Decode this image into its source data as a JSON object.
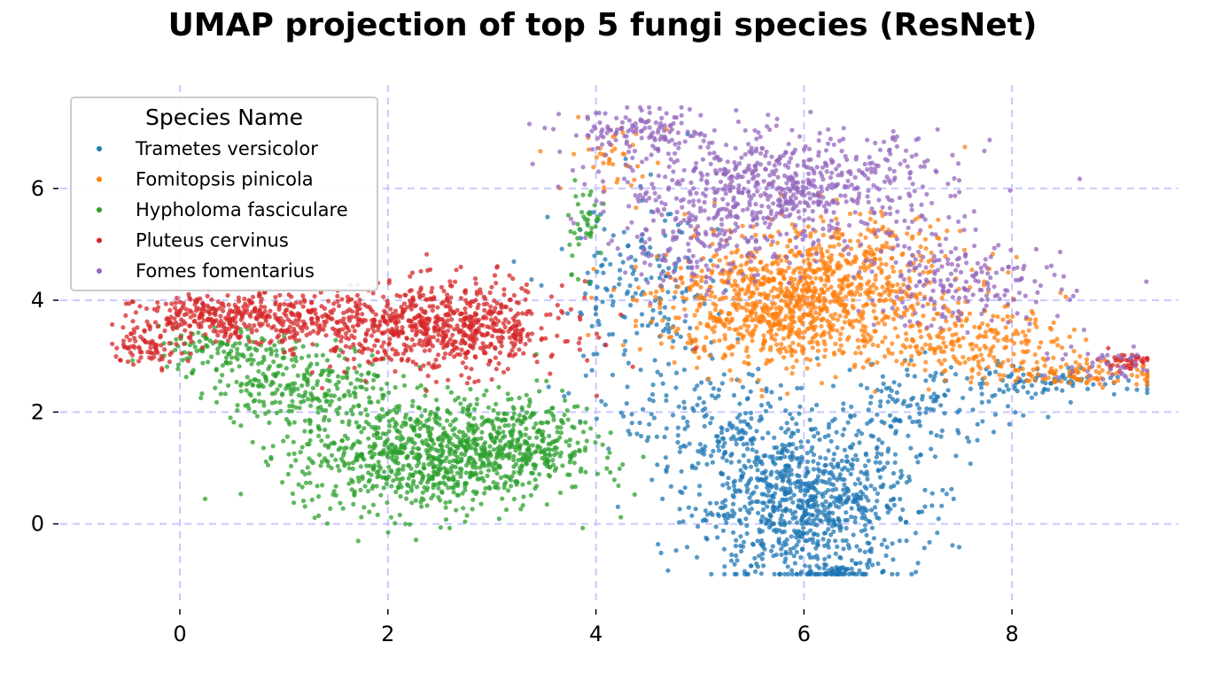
{
  "chart_data": {
    "type": "scatter",
    "title": "UMAP projection of top 5 fungi species (ResNet)",
    "xlabel": "",
    "ylabel": "",
    "xlim": [
      -1.15,
      9.6
    ],
    "ylim": [
      -1.4,
      7.85
    ],
    "x_ticks": [
      0,
      2,
      4,
      6,
      8
    ],
    "y_ticks": [
      0,
      2,
      4,
      6
    ],
    "grid": true,
    "grid_color": "#c8c8ff",
    "legend_title": "Species Name",
    "legend_position": "top-left",
    "series": [
      {
        "name": "Trametes versicolor",
        "color": "#1f77b4",
        "clusters": [
          {
            "cx": 6.0,
            "cy": 0.4,
            "sx": 0.55,
            "sy": 0.7,
            "n": 900
          },
          {
            "cx": 6.3,
            "cy": -0.85,
            "sx": 0.15,
            "sy": 0.08,
            "n": 60
          },
          {
            "cx": 5.2,
            "cy": 1.8,
            "sx": 0.5,
            "sy": 0.55,
            "n": 160
          },
          {
            "cx": 7.2,
            "cy": 2.2,
            "sx": 0.5,
            "sy": 0.35,
            "n": 140
          },
          {
            "cx": 4.4,
            "cy": 4.0,
            "sx": 0.4,
            "sy": 0.9,
            "n": 180
          },
          {
            "cx": 8.5,
            "cy": 2.55,
            "sx": 0.55,
            "sy": 0.1,
            "n": 70
          }
        ]
      },
      {
        "name": "Fomitopsis pinicola",
        "color": "#ff7f0e",
        "clusters": [
          {
            "cx": 5.8,
            "cy": 3.9,
            "sx": 0.6,
            "sy": 0.55,
            "n": 850
          },
          {
            "cx": 6.4,
            "cy": 4.6,
            "sx": 0.6,
            "sy": 0.5,
            "n": 300
          },
          {
            "cx": 7.6,
            "cy": 3.3,
            "sx": 0.45,
            "sy": 0.35,
            "n": 220
          },
          {
            "cx": 8.7,
            "cy": 2.7,
            "sx": 0.4,
            "sy": 0.12,
            "n": 110
          },
          {
            "cx": 4.2,
            "cy": 6.6,
            "sx": 0.25,
            "sy": 0.35,
            "n": 40
          }
        ]
      },
      {
        "name": "Hypholoma fasciculare",
        "color": "#2ca02c",
        "clusters": [
          {
            "cx": 2.4,
            "cy": 1.2,
            "sx": 0.65,
            "sy": 0.5,
            "n": 900
          },
          {
            "cx": 3.3,
            "cy": 1.6,
            "sx": 0.35,
            "sy": 0.4,
            "n": 200
          },
          {
            "cx": 1.2,
            "cy": 2.5,
            "sx": 0.45,
            "sy": 0.35,
            "n": 260
          },
          {
            "cx": 0.4,
            "cy": 3.1,
            "sx": 0.3,
            "sy": 0.2,
            "n": 100
          },
          {
            "cx": 3.9,
            "cy": 5.4,
            "sx": 0.1,
            "sy": 0.4,
            "n": 40
          }
        ]
      },
      {
        "name": "Pluteus cervinus",
        "color": "#d62728",
        "clusters": [
          {
            "cx": 2.6,
            "cy": 3.5,
            "sx": 0.55,
            "sy": 0.4,
            "n": 650
          },
          {
            "cx": 0.5,
            "cy": 3.7,
            "sx": 0.45,
            "sy": 0.2,
            "n": 330
          },
          {
            "cx": -0.3,
            "cy": 3.2,
            "sx": 0.18,
            "sy": 0.18,
            "n": 80
          },
          {
            "cx": 1.5,
            "cy": 3.6,
            "sx": 0.4,
            "sy": 0.3,
            "n": 160
          },
          {
            "cx": 9.1,
            "cy": 2.9,
            "sx": 0.14,
            "sy": 0.08,
            "n": 40
          }
        ]
      },
      {
        "name": "Fomes fomentarius",
        "color": "#9467bd",
        "clusters": [
          {
            "cx": 5.8,
            "cy": 6.0,
            "sx": 0.8,
            "sy": 0.5,
            "n": 700
          },
          {
            "cx": 4.4,
            "cy": 7.0,
            "sx": 0.35,
            "sy": 0.2,
            "n": 120
          },
          {
            "cx": 7.5,
            "cy": 4.3,
            "sx": 0.5,
            "sy": 0.4,
            "n": 200
          },
          {
            "cx": 5.0,
            "cy": 4.9,
            "sx": 0.4,
            "sy": 0.4,
            "n": 120
          },
          {
            "cx": 8.9,
            "cy": 2.8,
            "sx": 0.3,
            "sy": 0.15,
            "n": 40
          }
        ]
      }
    ]
  }
}
